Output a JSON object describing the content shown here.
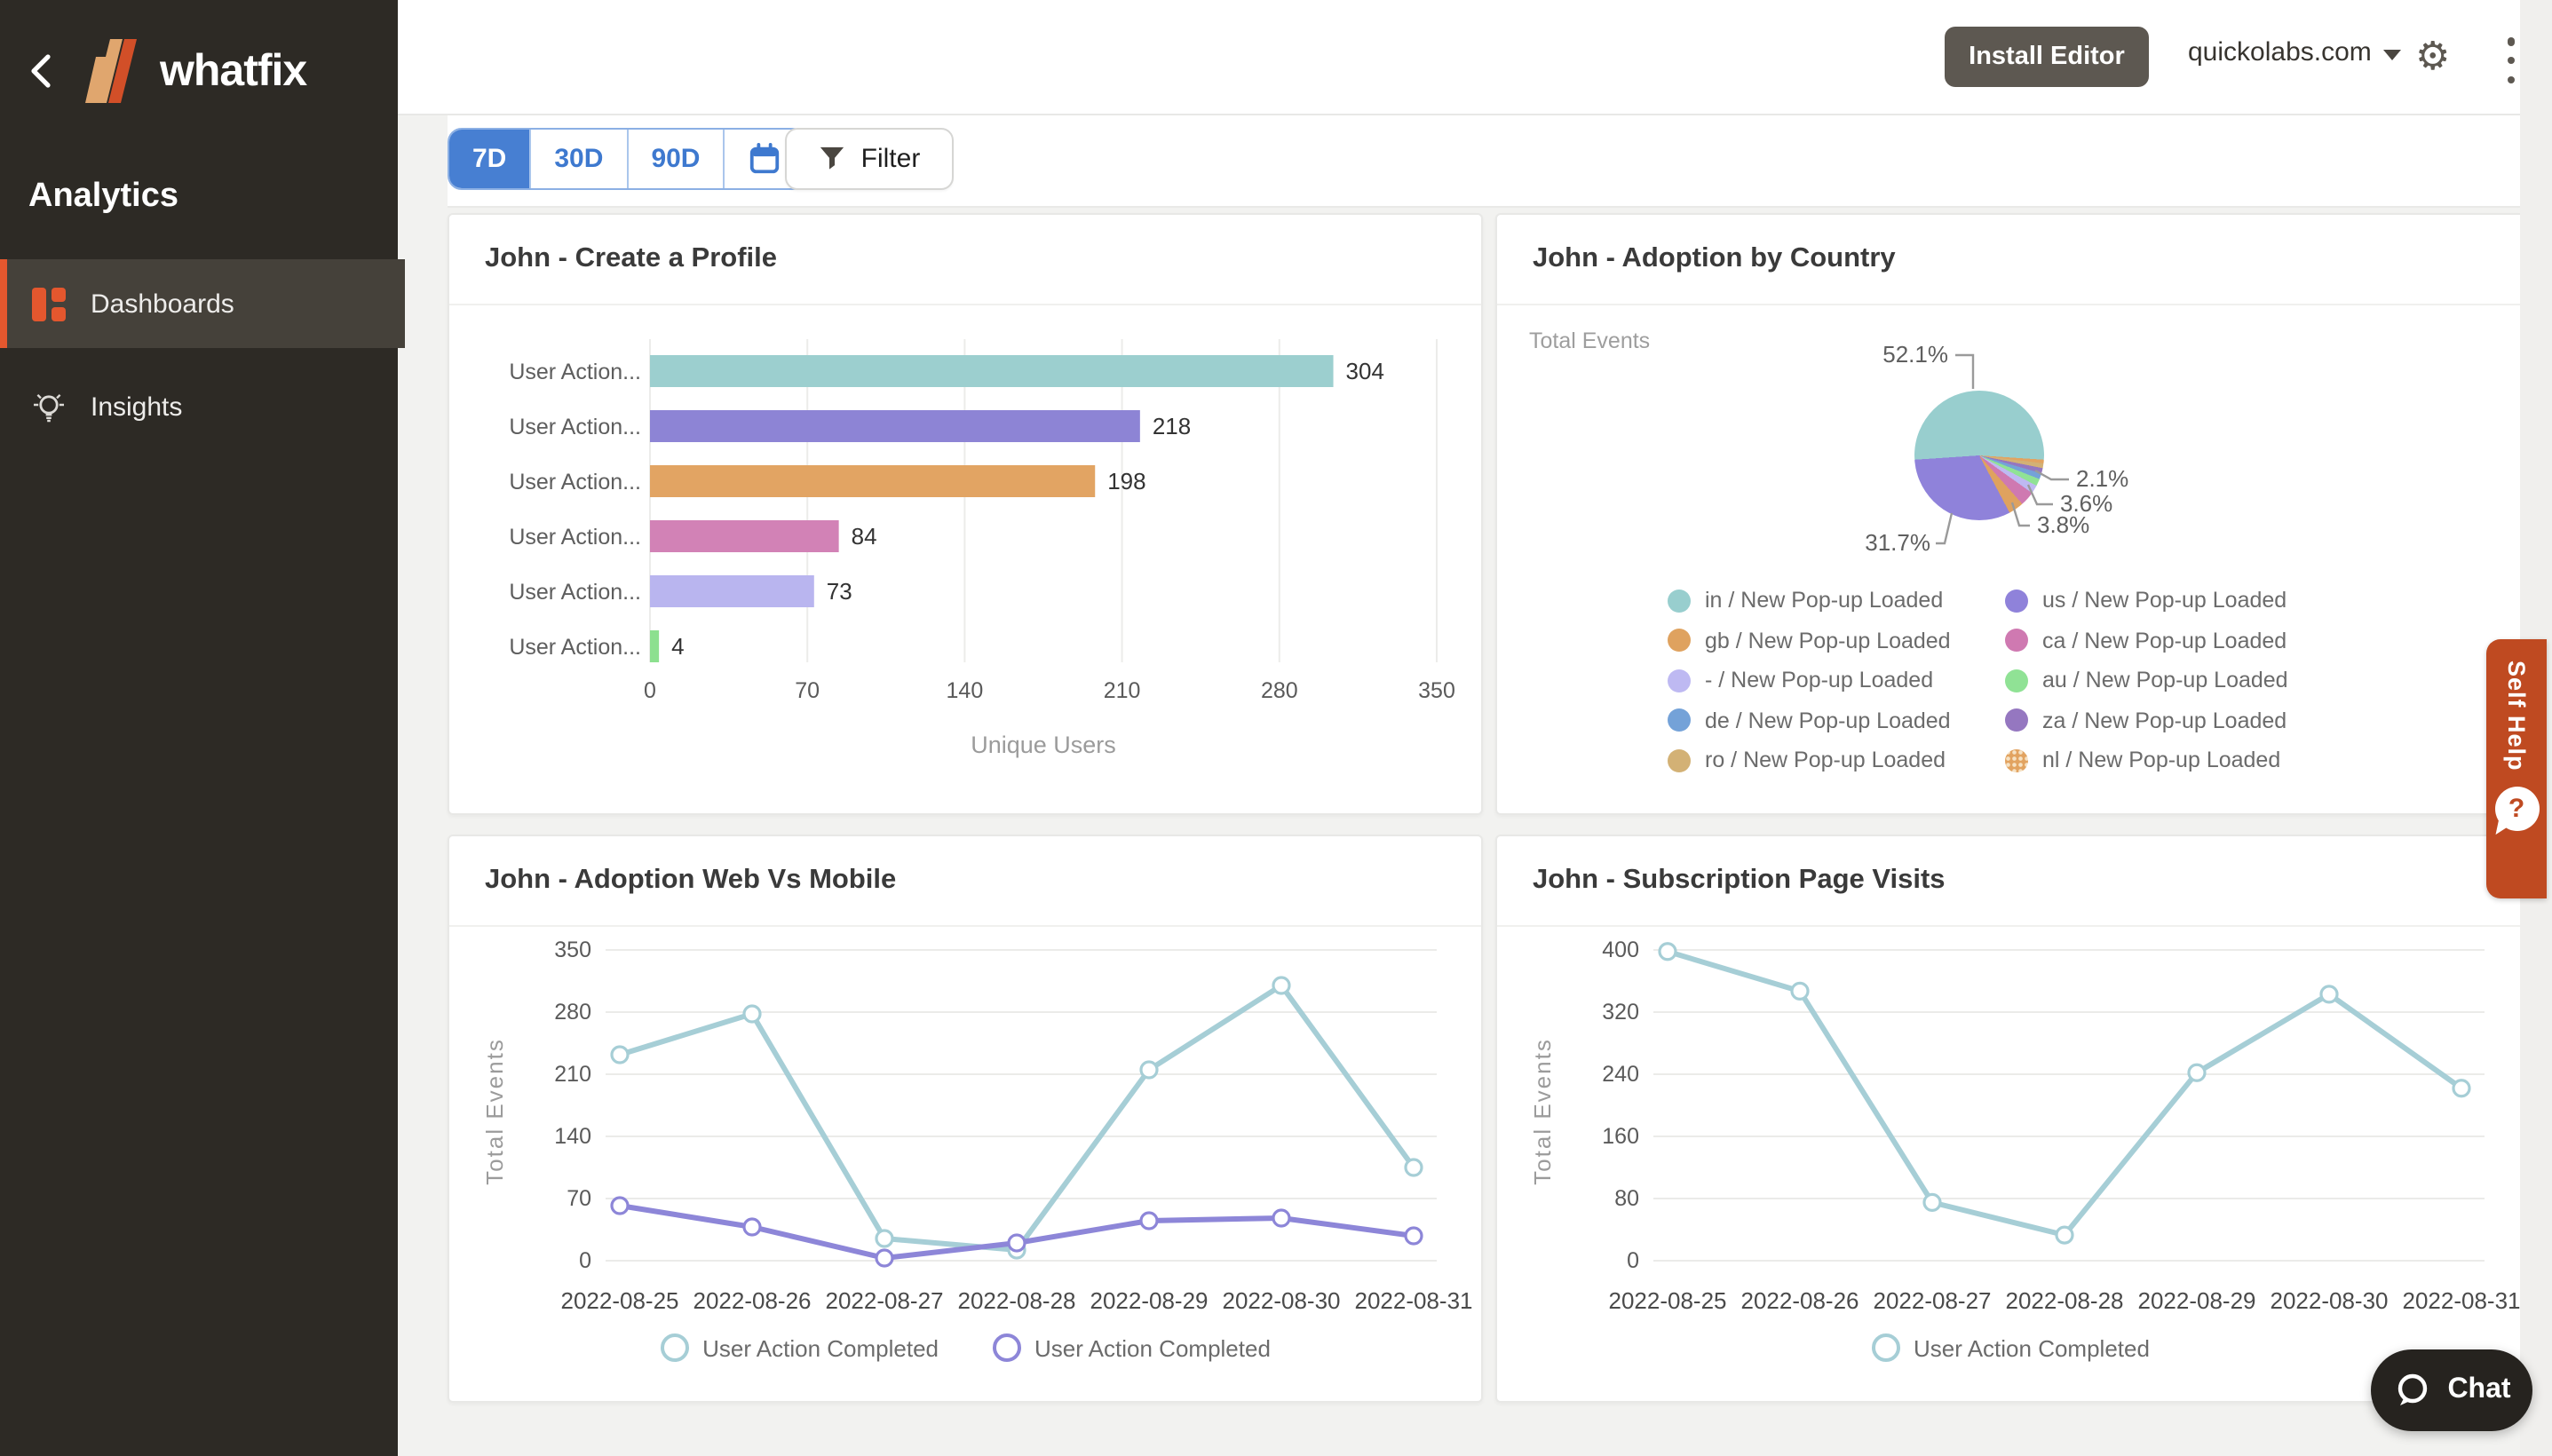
{
  "app": {
    "brand": "whatfix",
    "section_title": "Analytics"
  },
  "sidebar": {
    "items": [
      {
        "label": "Dashboards",
        "active": true
      },
      {
        "label": "Insights",
        "active": false
      }
    ]
  },
  "topbar": {
    "install_button": "Install Editor",
    "account": "quickolabs.com"
  },
  "filter_bar": {
    "ranges": [
      "7D",
      "30D",
      "90D"
    ],
    "active_range": "7D",
    "filter_label": "Filter"
  },
  "icons": {
    "gear": "⚙",
    "kebab": "kebab-dots",
    "caret": "caret-down",
    "calendar": "calendar-outline",
    "funnel": "funnel-shape",
    "back": "chevron-left",
    "bulb": "lightbulb-outline",
    "dashboard": "grid-blocks",
    "chat_bubble": "speech-bubble",
    "question": "?"
  },
  "self_help": {
    "label": "Self Help",
    "icon_glyph": "?"
  },
  "chat": {
    "label": "Chat"
  },
  "colors": {
    "accent_orange": "#e4572e",
    "sidebar_bg": "#2d2a25",
    "active_blue": "#477fd2",
    "self_help_red": "#bf4a21",
    "teal_line": "#a6ced6",
    "purple_line": "#8d86d8"
  },
  "chart_data": [
    {
      "type": "bar",
      "title": "John - Create a Profile",
      "orientation": "horizontal",
      "categories": [
        "User Action...",
        "User Action...",
        "User Action...",
        "User Action...",
        "User Action...",
        "User Action..."
      ],
      "values": [
        304,
        218,
        198,
        84,
        73,
        4
      ],
      "bar_colors": [
        "#9ccfcf",
        "#8d84d5",
        "#e2a463",
        "#d282b6",
        "#b9b5ef",
        "#8ce08f"
      ],
      "xticks": [
        0,
        70,
        140,
        210,
        280,
        350
      ],
      "xlim": [
        0,
        350
      ],
      "xlabel": "Unique Users",
      "grid": true
    },
    {
      "type": "pie",
      "title": "John - Adoption by Country",
      "units_label": "Total Events",
      "slices": [
        {
          "name": "in / New Pop-up Loaded",
          "value": 52.1,
          "color": "#98cece",
          "display_label": "52.1%"
        },
        {
          "name": "us / New Pop-up Loaded",
          "value": 31.7,
          "color": "#8f82da",
          "display_label": "31.7%"
        },
        {
          "name": "gb / New Pop-up Loaded",
          "value": 3.8,
          "color": "#dfa25f",
          "display_label": "3.8%"
        },
        {
          "name": "ca / New Pop-up Loaded",
          "value": 3.6,
          "color": "#cf79b1",
          "display_label": "3.6%"
        },
        {
          "name": "- / New Pop-up Loaded",
          "value": 2.1,
          "color": "#beb9f2",
          "display_label": "2.1%"
        },
        {
          "name": "au / New Pop-up Loaded",
          "value": 1.8,
          "color": "#90e295",
          "display_label": ""
        },
        {
          "name": "de / New Pop-up Loaded",
          "value": 1.5,
          "color": "#74a2d8",
          "display_label": ""
        },
        {
          "name": "za / New Pop-up Loaded",
          "value": 1.3,
          "color": "#9577c0",
          "display_label": ""
        },
        {
          "name": "ro / New Pop-up Loaded",
          "value": 1.2,
          "color": "#d3b175",
          "display_label": ""
        },
        {
          "name": "nl / New Pop-up Loaded",
          "value": 0.9,
          "color": "#e2a360",
          "display_label": "",
          "pattern": "dotted"
        }
      ],
      "legend_position": "bottom"
    },
    {
      "type": "line",
      "title": "John - Adoption Web Vs Mobile",
      "ylabel": "Total Events",
      "x": [
        "2022-08-25",
        "2022-08-26",
        "2022-08-27",
        "2022-08-28",
        "2022-08-29",
        "2022-08-30",
        "2022-08-31"
      ],
      "yticks": [
        0,
        70,
        140,
        210,
        280,
        350
      ],
      "ylim": [
        0,
        350
      ],
      "grid": true,
      "series": [
        {
          "name": "User Action Completed",
          "color": "#a6ced6",
          "values": [
            232,
            278,
            25,
            12,
            215,
            310,
            105
          ]
        },
        {
          "name": "User Action Completed",
          "color": "#8d86d8",
          "values": [
            62,
            38,
            3,
            20,
            45,
            48,
            28
          ]
        }
      ],
      "legend_position": "bottom"
    },
    {
      "type": "line",
      "title": "John - Subscription Page Visits",
      "ylabel": "Total Events",
      "x": [
        "2022-08-25",
        "2022-08-26",
        "2022-08-27",
        "2022-08-28",
        "2022-08-29",
        "2022-08-30",
        "2022-08-31"
      ],
      "yticks": [
        0,
        80,
        160,
        240,
        320,
        400
      ],
      "ylim": [
        0,
        400
      ],
      "grid": true,
      "series": [
        {
          "name": "User Action Completed",
          "color": "#a6ced6",
          "values": [
            398,
            347,
            75,
            33,
            242,
            343,
            222
          ]
        }
      ],
      "legend_position": "bottom"
    }
  ]
}
